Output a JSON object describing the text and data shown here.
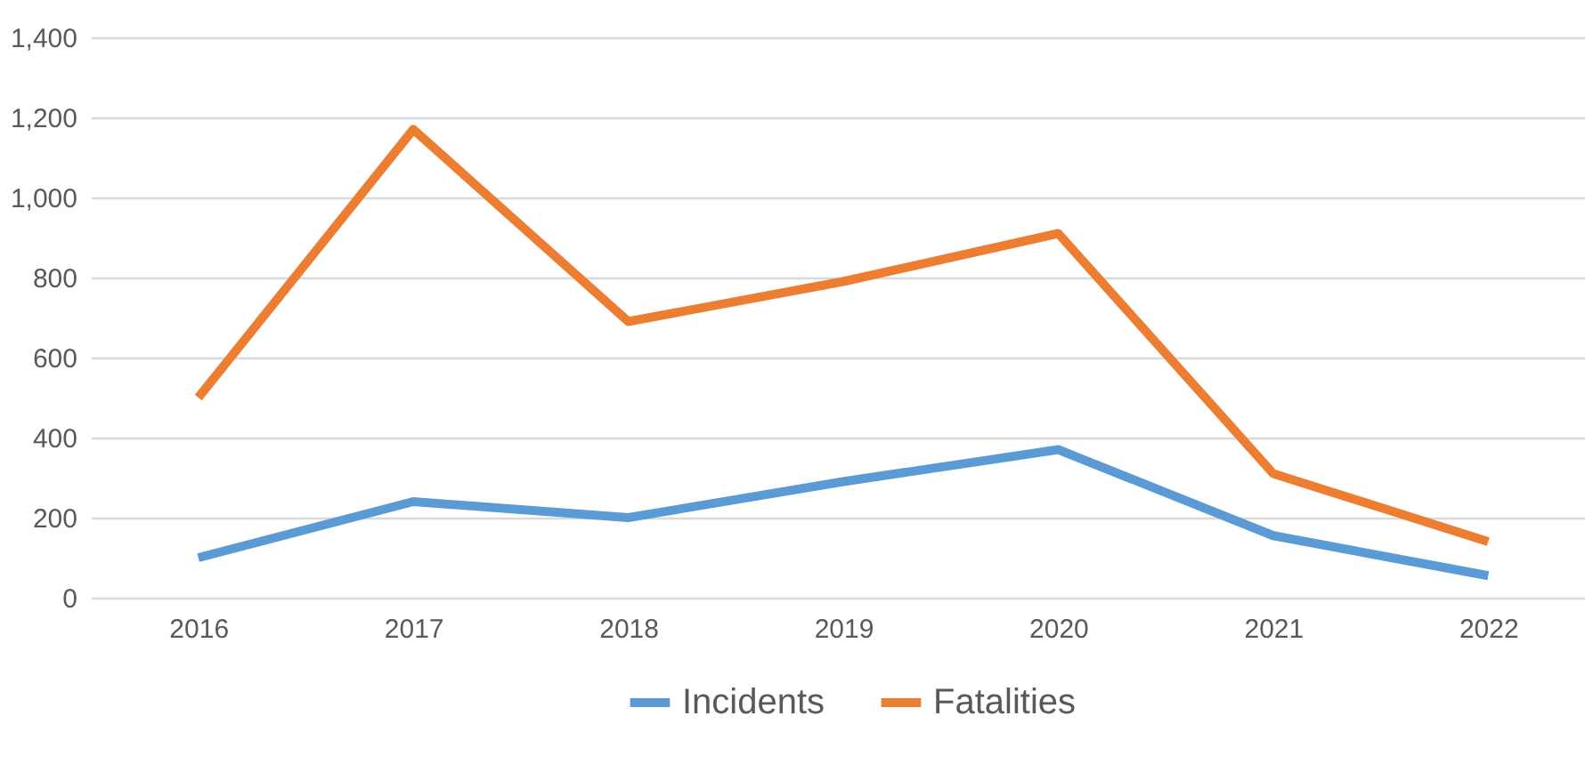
{
  "chart_data": {
    "type": "line",
    "categories": [
      "2016",
      "2017",
      "2018",
      "2019",
      "2020",
      "2021",
      "2022"
    ],
    "series": [
      {
        "name": "Incidents",
        "color": "#5b9bd5",
        "values": [
          100,
          240,
          200,
          290,
          370,
          155,
          55
        ]
      },
      {
        "name": "Fatalities",
        "color": "#ed7d31",
        "values": [
          500,
          1170,
          690,
          790,
          910,
          310,
          140
        ]
      }
    ],
    "ylim": [
      0,
      1400
    ],
    "yticks": [
      0,
      200,
      400,
      600,
      800,
      {
        "value": 1000,
        "label": "1,000"
      },
      {
        "value": 1200,
        "label": "1,200"
      },
      {
        "value": 1400,
        "label": "1,400"
      }
    ],
    "grid": "y",
    "legend": "bottom",
    "marker": "none",
    "line_style": "solid"
  }
}
